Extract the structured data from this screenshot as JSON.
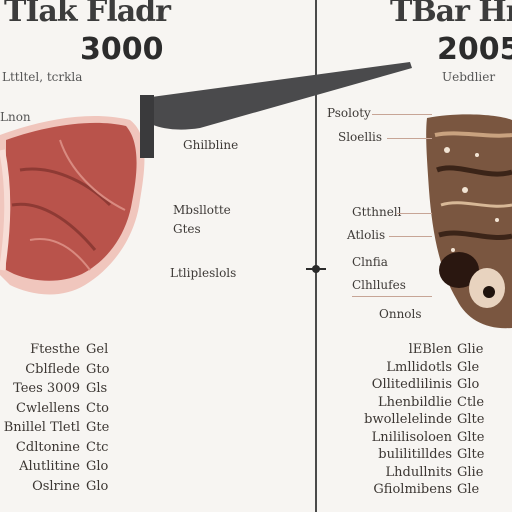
{
  "left": {
    "title": "TIak Fladr",
    "year": "3000",
    "header_note": "Lttltel, tcrkla",
    "side_label": "Lnon",
    "labels": [
      "Ghilbline",
      "Mbsllotte",
      "Gtes",
      "Ltlipleslols"
    ],
    "table": [
      {
        "key": "Ftesthe",
        "value": "Gel"
      },
      {
        "key": "Cblflede",
        "value": "Gto"
      },
      {
        "key": "Tees 3009",
        "value": "Gls"
      },
      {
        "key": "Cwlellens",
        "value": "Cto"
      },
      {
        "key": "Bnillel Tletl",
        "value": "Gte"
      },
      {
        "key": "Cdltonine",
        "value": "Ctc"
      },
      {
        "key": "Alutlitine",
        "value": "Glo"
      },
      {
        "key": "Oslrine",
        "value": "Glo"
      }
    ]
  },
  "right": {
    "title": "TBar Hm",
    "year": "2005",
    "header_note": "Uebdlier",
    "labels": [
      "Psoloty",
      "Sloellis",
      "Gtthnell",
      "Atlolis",
      "Clnfia",
      "Clhllufes",
      "Onnols"
    ],
    "table": [
      {
        "key": "lEBlen",
        "value": "Glie"
      },
      {
        "key": "Lmllidotls",
        "value": "Gle"
      },
      {
        "key": "Ollitedlilinis",
        "value": "Glo"
      },
      {
        "key": "Lhenbildlie",
        "value": "Ctle"
      },
      {
        "key": "bwollelelinde",
        "value": "Glte"
      },
      {
        "key": "Lnililisoloen",
        "value": "Glte"
      },
      {
        "key": "bulilitilldes",
        "value": "Glte"
      },
      {
        "key": "Lhdullnits",
        "value": "Glie"
      },
      {
        "key": "Gfiolmibens",
        "value": "Gle"
      }
    ]
  },
  "colors": {
    "raw_meat": "#b9534b",
    "fat": "#f0c6bd",
    "roast": "#7a5640",
    "knife": "#4a4a4c",
    "divider": "#4a4a4a"
  }
}
